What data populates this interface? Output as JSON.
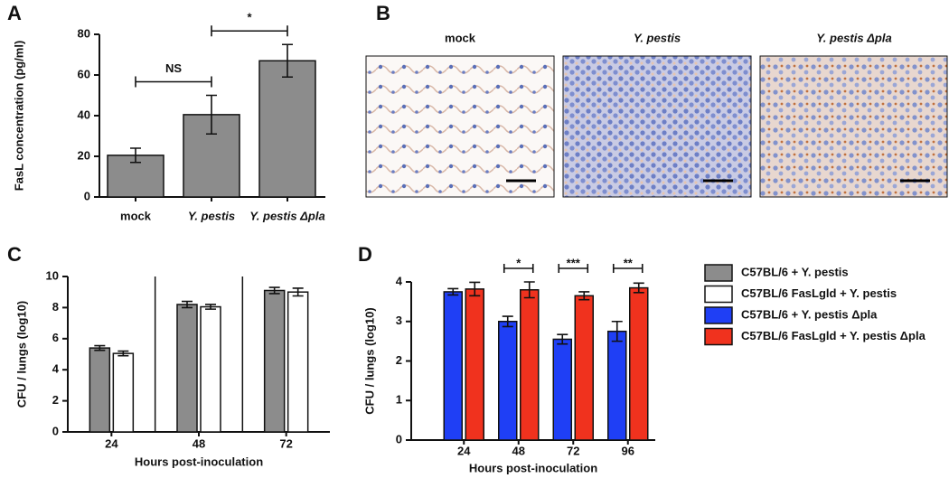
{
  "figure": {
    "panel_labels": [
      "A",
      "B",
      "C",
      "D"
    ]
  },
  "micrographs": {
    "titles": [
      "mock",
      "Y. pestis",
      "Y. pestis Δpla"
    ]
  },
  "chart_data": [
    {
      "type": "bar",
      "categories": [
        "mock",
        "Y. pestis",
        "Y. pestis Δpla"
      ],
      "values": [
        20.5,
        40.5,
        67
      ],
      "errors": [
        3.5,
        9.5,
        8
      ],
      "color": "#8c8c8c",
      "ylabel": "FasL concentration (pg/ml)",
      "ylim": [
        0,
        80
      ],
      "yticks": [
        0,
        20,
        40,
        60,
        80
      ],
      "comparisons": [
        {
          "label": "NS",
          "groups": [
            "mock",
            "Y. pestis"
          ]
        },
        {
          "label": "*",
          "groups": [
            "Y. pestis",
            "Y. pestis Δpla"
          ]
        }
      ]
    },
    {
      "type": "grouped-bar",
      "categories": [
        "24",
        "48",
        "72"
      ],
      "xlabel": "Hours post-inoculation",
      "ylabel": "CFU / lungs (log10)",
      "ylim": [
        0,
        10
      ],
      "yticks": [
        0,
        2,
        4,
        6,
        8,
        10
      ],
      "separators": true,
      "series": [
        {
          "name": "C57BL/6 + Y. pestis",
          "color": "#8c8c8c",
          "values": [
            5.4,
            8.2,
            9.1
          ],
          "errors": [
            0.15,
            0.2,
            0.2
          ]
        },
        {
          "name": "C57BL/6 FasLgld + Y. pestis",
          "color": "#ffffff",
          "values": [
            5.05,
            8.05,
            9.0
          ],
          "errors": [
            0.15,
            0.15,
            0.25
          ]
        }
      ]
    },
    {
      "type": "grouped-bar",
      "categories": [
        "24",
        "48",
        "72",
        "96"
      ],
      "xlabel": "Hours post-inoculation",
      "ylabel": "CFU / lungs (log10)",
      "ylim": [
        0,
        4
      ],
      "yticks": [
        0,
        1,
        2,
        3,
        4
      ],
      "separators": false,
      "significance": [
        null,
        "*",
        "***",
        "**"
      ],
      "series": [
        {
          "name": "C57BL/6 + Y. pestis Δpla",
          "color": "#1f3ff5",
          "values": [
            3.75,
            3.0,
            2.55,
            2.75
          ],
          "errors": [
            0.08,
            0.13,
            0.12,
            0.25
          ]
        },
        {
          "name": "C57BL/6 FasLgld + Y. pestis Δpla",
          "color": "#f0321e",
          "values": [
            3.82,
            3.8,
            3.65,
            3.85
          ],
          "errors": [
            0.17,
            0.2,
            0.1,
            0.12
          ]
        }
      ]
    }
  ]
}
